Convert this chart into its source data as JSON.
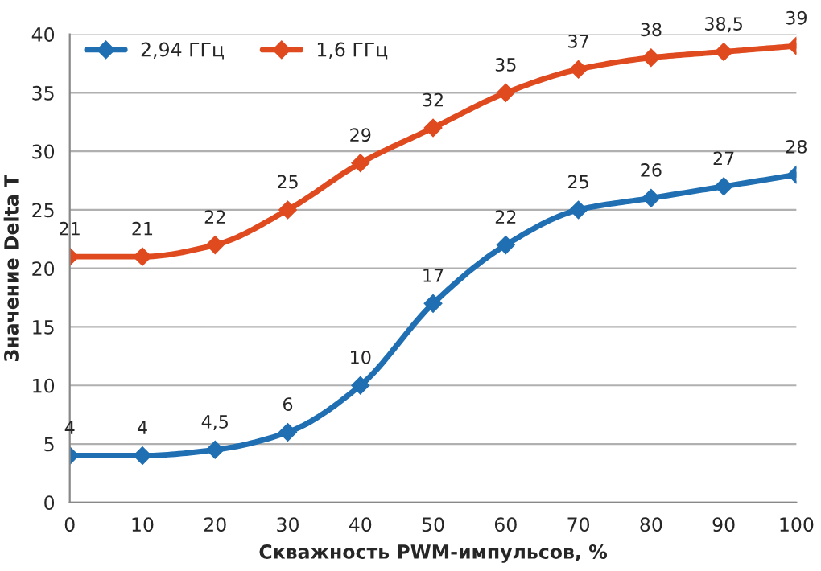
{
  "chart_data": {
    "type": "line",
    "xlabel": "Скважность PWM-импульсов, %",
    "ylabel": "Значение Delta T",
    "x": [
      0,
      10,
      20,
      30,
      40,
      50,
      60,
      70,
      80,
      90,
      100
    ],
    "series": [
      {
        "name": "2,94 ГГц",
        "color": "#1f6fb2",
        "values": [
          4,
          4,
          4.5,
          6,
          10,
          17,
          22,
          25,
          26,
          27,
          28
        ],
        "value_labels": [
          "4",
          "4",
          "4,5",
          "6",
          "10",
          "17",
          "22",
          "25",
          "26",
          "27",
          "28"
        ]
      },
      {
        "name": "1,6 ГГц",
        "color": "#e04a1f",
        "values": [
          21,
          21,
          22,
          25,
          29,
          32,
          35,
          37,
          38,
          38.5,
          39
        ],
        "value_labels": [
          "21",
          "21",
          "22",
          "25",
          "29",
          "32",
          "35",
          "37",
          "38",
          "38,5",
          "39"
        ]
      }
    ],
    "xlim": [
      0,
      100
    ],
    "xticks": [
      0,
      10,
      20,
      30,
      40,
      50,
      60,
      70,
      80,
      90,
      100
    ],
    "ylim": [
      0,
      40
    ],
    "yticks": [
      0,
      5,
      10,
      15,
      20,
      25,
      30,
      35,
      40
    ],
    "grid": "y",
    "legend": "top left",
    "marker": "diamond",
    "line_style": "solid"
  }
}
